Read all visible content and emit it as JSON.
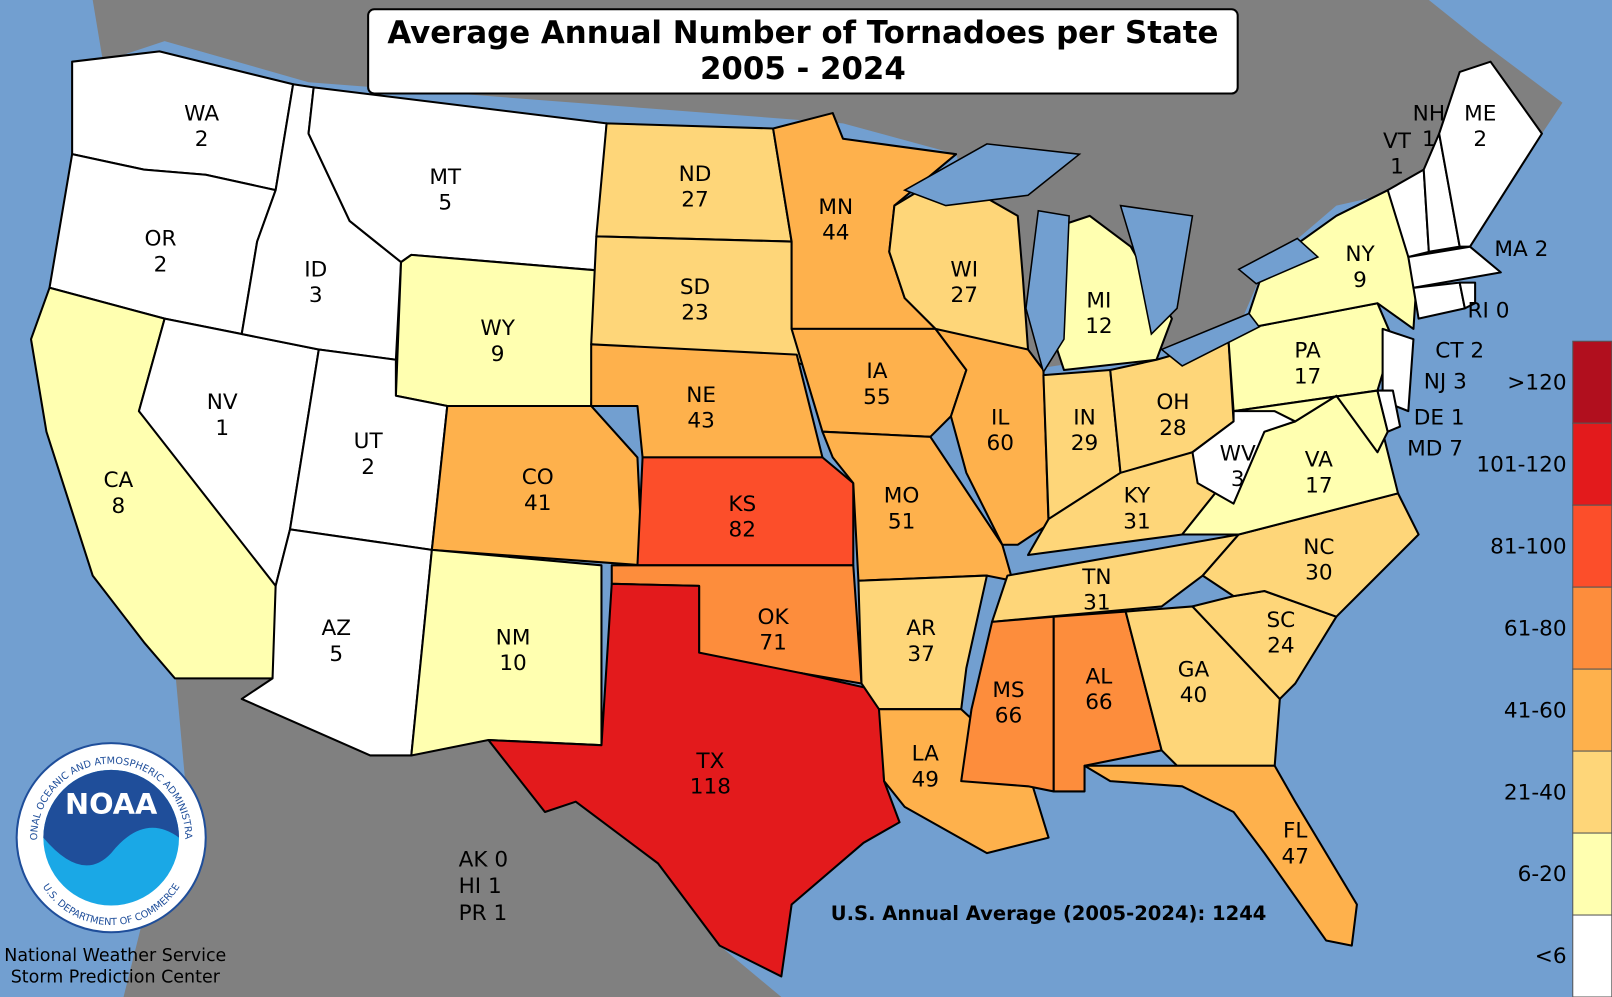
{
  "title": [
    "Average Annual Number of Tornadoes per State",
    "2005 - 2024"
  ],
  "states": [
    {
      "abbr": "WA",
      "value": 2,
      "color": "#ffffff"
    },
    {
      "abbr": "OR",
      "value": 2,
      "color": "#ffffff"
    },
    {
      "abbr": "CA",
      "value": 8,
      "color": "#ffffb0"
    },
    {
      "abbr": "NV",
      "value": 1,
      "color": "#ffffff"
    },
    {
      "abbr": "ID",
      "value": 3,
      "color": "#ffffff"
    },
    {
      "abbr": "MT",
      "value": 5,
      "color": "#ffffff"
    },
    {
      "abbr": "WY",
      "value": 9,
      "color": "#ffffb0"
    },
    {
      "abbr": "UT",
      "value": 2,
      "color": "#ffffff"
    },
    {
      "abbr": "AZ",
      "value": 5,
      "color": "#ffffff"
    },
    {
      "abbr": "CO",
      "value": 41,
      "color": "#feb14c"
    },
    {
      "abbr": "NM",
      "value": 10,
      "color": "#ffffb0"
    },
    {
      "abbr": "ND",
      "value": 27,
      "color": "#fed679"
    },
    {
      "abbr": "SD",
      "value": 23,
      "color": "#fed679"
    },
    {
      "abbr": "NE",
      "value": 43,
      "color": "#feb14c"
    },
    {
      "abbr": "KS",
      "value": 82,
      "color": "#fc4e2a"
    },
    {
      "abbr": "OK",
      "value": 71,
      "color": "#fd8d3c"
    },
    {
      "abbr": "TX",
      "value": 118,
      "color": "#e31a1c"
    },
    {
      "abbr": "MN",
      "value": 44,
      "color": "#feb14c"
    },
    {
      "abbr": "IA",
      "value": 55,
      "color": "#feb14c"
    },
    {
      "abbr": "MO",
      "value": 51,
      "color": "#feb14c"
    },
    {
      "abbr": "AR",
      "value": 37,
      "color": "#fed679"
    },
    {
      "abbr": "LA",
      "value": 49,
      "color": "#feb14c"
    },
    {
      "abbr": "WI",
      "value": 27,
      "color": "#fed679"
    },
    {
      "abbr": "IL",
      "value": 60,
      "color": "#feb14c"
    },
    {
      "abbr": "MI",
      "value": 12,
      "color": "#ffffb0"
    },
    {
      "abbr": "IN",
      "value": 29,
      "color": "#fed679"
    },
    {
      "abbr": "OH",
      "value": 28,
      "color": "#fed679"
    },
    {
      "abbr": "KY",
      "value": 31,
      "color": "#fed679"
    },
    {
      "abbr": "TN",
      "value": 31,
      "color": "#fed679"
    },
    {
      "abbr": "MS",
      "value": 66,
      "color": "#fd8d3c"
    },
    {
      "abbr": "AL",
      "value": 66,
      "color": "#fd8d3c"
    },
    {
      "abbr": "GA",
      "value": 40,
      "color": "#fed679"
    },
    {
      "abbr": "FL",
      "value": 47,
      "color": "#feb14c"
    },
    {
      "abbr": "SC",
      "value": 24,
      "color": "#fed679"
    },
    {
      "abbr": "NC",
      "value": 30,
      "color": "#fed679"
    },
    {
      "abbr": "VA",
      "value": 17,
      "color": "#ffffb0"
    },
    {
      "abbr": "WV",
      "value": 3,
      "color": "#ffffff"
    },
    {
      "abbr": "PA",
      "value": 17,
      "color": "#ffffb0"
    },
    {
      "abbr": "NY",
      "value": 9,
      "color": "#ffffb0"
    },
    {
      "abbr": "NJ",
      "value": 3,
      "color": "#ffffff"
    },
    {
      "abbr": "MD",
      "value": 7,
      "color": "#ffffb0"
    },
    {
      "abbr": "DE",
      "value": 1,
      "color": "#ffffff"
    },
    {
      "abbr": "VT",
      "value": 1,
      "color": "#ffffff"
    },
    {
      "abbr": "NH",
      "value": 1,
      "color": "#ffffff"
    },
    {
      "abbr": "ME",
      "value": 2,
      "color": "#ffffff"
    },
    {
      "abbr": "MA",
      "value": 2,
      "color": "#ffffff"
    },
    {
      "abbr": "CT",
      "value": 2,
      "color": "#ffffff"
    },
    {
      "abbr": "RI",
      "value": 0,
      "color": "#ffffff"
    }
  ],
  "territories": [
    {
      "abbr": "AK",
      "value": 0
    },
    {
      "abbr": "HI",
      "value": 1
    },
    {
      "abbr": "PR",
      "value": 1
    }
  ],
  "average": {
    "label": "U.S. Annual Average (2005-2024):",
    "value": 1244
  },
  "legend": [
    {
      "label": ">120",
      "color": "#b10f1e"
    },
    {
      "label": "101-120",
      "color": "#e31a1c"
    },
    {
      "label": "81-100",
      "color": "#fc4e2a"
    },
    {
      "label": "61-80",
      "color": "#fd8d3c"
    },
    {
      "label": "41-60",
      "color": "#feb14c"
    },
    {
      "label": "21-40",
      "color": "#fed679"
    },
    {
      "label": "6-20",
      "color": "#ffffb0"
    },
    {
      "label": "<6",
      "color": "#ffffff"
    }
  ],
  "logo": {
    "name": "NOAA",
    "ring_top": "NATIONAL OCEANIC AND ATMOSPHERIC ADMINISTRATION",
    "ring_bottom": "U.S. DEPARTMENT OF COMMERCE"
  },
  "footer": [
    "National Weather Service",
    "Storm Prediction Center"
  ]
}
